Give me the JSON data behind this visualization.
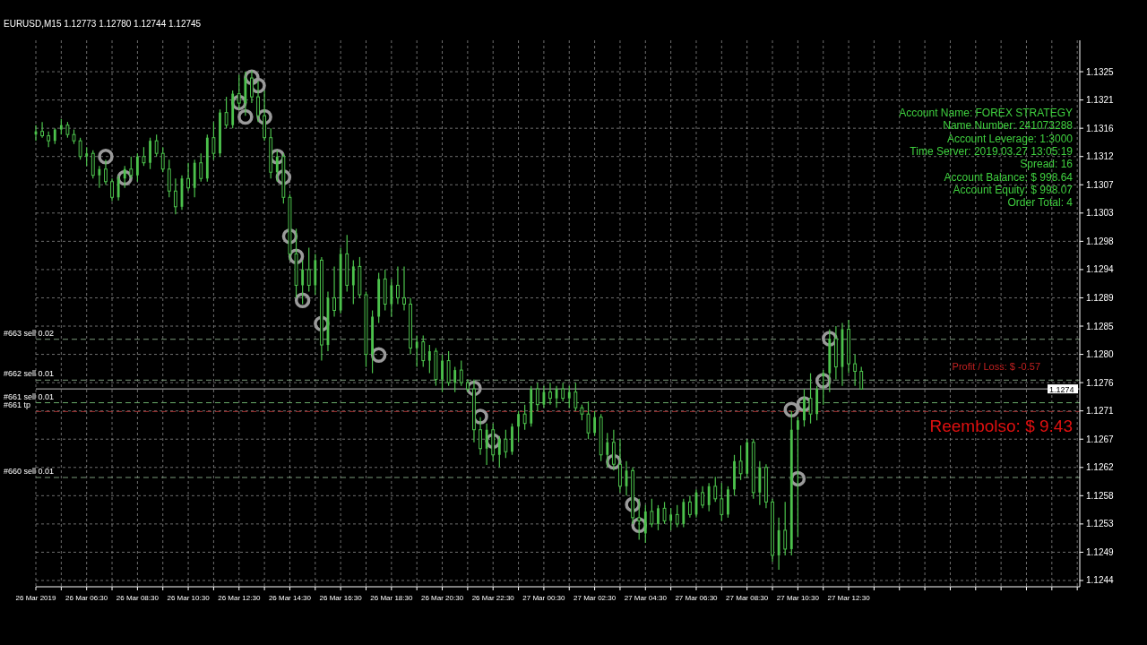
{
  "chart_data": {
    "type": "candlestick",
    "title": "EURUSD,M15  1.12773 1.12780 1.12744 1.12745",
    "color": "#4cc24c",
    "grid": true,
    "marker": "circle",
    "xlim": [
      "2019-03-26T04:30",
      "2019-03-27T21:36"
    ],
    "ylim": [
      1.1243,
      1.133
    ],
    "xticks": [
      {
        "value": "2019-03-26T04:30",
        "label": "26 Mar 2019"
      },
      {
        "value": "2019-03-26T05:30",
        "label": null
      },
      {
        "value": "2019-03-26T06:30",
        "label": "26 Mar 06:30"
      },
      {
        "value": "2019-03-26T07:30",
        "label": null
      },
      {
        "value": "2019-03-26T08:30",
        "label": "26 Mar 08:30"
      },
      {
        "value": "2019-03-26T09:30",
        "label": null
      },
      {
        "value": "2019-03-26T10:30",
        "label": "26 Mar 10:30"
      },
      {
        "value": "2019-03-26T11:30",
        "label": null
      },
      {
        "value": "2019-03-26T12:30",
        "label": "26 Mar 12:30"
      },
      {
        "value": "2019-03-26T13:30",
        "label": null
      },
      {
        "value": "2019-03-26T14:30",
        "label": "26 Mar 14:30"
      },
      {
        "value": "2019-03-26T15:30",
        "label": null
      },
      {
        "value": "2019-03-26T16:30",
        "label": "26 Mar 16:30"
      },
      {
        "value": "2019-03-26T17:30",
        "label": null
      },
      {
        "value": "2019-03-26T18:30",
        "label": "26 Mar 18:30"
      },
      {
        "value": "2019-03-26T19:30",
        "label": null
      },
      {
        "value": "2019-03-26T20:30",
        "label": "26 Mar 20:30"
      },
      {
        "value": "2019-03-26T21:30",
        "label": null
      },
      {
        "value": "2019-03-26T22:30",
        "label": "26 Mar 22:30"
      },
      {
        "value": "2019-03-26T23:30",
        "label": null
      },
      {
        "value": "2019-03-27T00:30",
        "label": "27 Mar 00:30"
      },
      {
        "value": "2019-03-27T01:30",
        "label": null
      },
      {
        "value": "2019-03-27T02:30",
        "label": "27 Mar 02:30"
      },
      {
        "value": "2019-03-27T03:30",
        "label": null
      },
      {
        "value": "2019-03-27T04:30",
        "label": "27 Mar 04:30"
      },
      {
        "value": "2019-03-27T05:30",
        "label": null
      },
      {
        "value": "2019-03-27T06:30",
        "label": "27 Mar 06:30"
      },
      {
        "value": "2019-03-27T07:30",
        "label": null
      },
      {
        "value": "2019-03-27T08:30",
        "label": "27 Mar 08:30"
      },
      {
        "value": "2019-03-27T09:30",
        "label": null
      },
      {
        "value": "2019-03-27T10:30",
        "label": "27 Mar 10:30"
      },
      {
        "value": "2019-03-27T11:30",
        "label": null
      },
      {
        "value": "2019-03-27T12:30",
        "label": "27 Mar 12:30"
      },
      {
        "value": "2019-03-27T13:30",
        "label": null
      },
      {
        "value": "2019-03-27T14:30",
        "label": null
      },
      {
        "value": "2019-03-27T15:30",
        "label": null
      },
      {
        "value": "2019-03-27T16:30",
        "label": null
      },
      {
        "value": "2019-03-27T17:30",
        "label": null
      },
      {
        "value": "2019-03-27T18:30",
        "label": null
      },
      {
        "value": "2019-03-27T19:30",
        "label": null
      },
      {
        "value": "2019-03-27T20:30",
        "label": null
      },
      {
        "value": "2019-03-27T21:30",
        "label": null
      }
    ],
    "yticks": [
      {
        "value": 1.1244,
        "label": "1.1244"
      },
      {
        "value": 1.12485,
        "label": "1.1249"
      },
      {
        "value": 1.1253,
        "label": "1.1253"
      },
      {
        "value": 1.12575,
        "label": "1.1258"
      },
      {
        "value": 1.1262,
        "label": "1.1262"
      },
      {
        "value": 1.12665,
        "label": "1.1267"
      },
      {
        "value": 1.1271,
        "label": "1.1271"
      },
      {
        "value": 1.12755,
        "label": "1.1276"
      },
      {
        "value": 1.128,
        "label": "1.1280"
      },
      {
        "value": 1.12845,
        "label": "1.1285"
      },
      {
        "value": 1.1289,
        "label": "1.1289"
      },
      {
        "value": 1.12935,
        "label": "1.1294"
      },
      {
        "value": 1.1298,
        "label": "1.1298"
      },
      {
        "value": 1.13025,
        "label": "1.1303"
      },
      {
        "value": 1.1307,
        "label": "1.1307"
      },
      {
        "value": 1.13115,
        "label": "1.1312"
      },
      {
        "value": 1.1316,
        "label": "1.1316"
      },
      {
        "value": 1.13205,
        "label": "1.1321"
      },
      {
        "value": 1.1325,
        "label": "1.1325"
      }
    ],
    "x": [
      "2019-03-26T04:30",
      "2019-03-26T04:45",
      "2019-03-26T05:00",
      "2019-03-26T05:15",
      "2019-03-26T05:30",
      "2019-03-26T05:45",
      "2019-03-26T06:00",
      "2019-03-26T06:15",
      "2019-03-26T06:30",
      "2019-03-26T06:45",
      "2019-03-26T07:00",
      "2019-03-26T07:15",
      "2019-03-26T07:30",
      "2019-03-26T07:45",
      "2019-03-26T08:00",
      "2019-03-26T08:15",
      "2019-03-26T08:30",
      "2019-03-26T08:45",
      "2019-03-26T09:00",
      "2019-03-26T09:15",
      "2019-03-26T09:30",
      "2019-03-26T09:45",
      "2019-03-26T10:00",
      "2019-03-26T10:15",
      "2019-03-26T10:30",
      "2019-03-26T10:45",
      "2019-03-26T11:00",
      "2019-03-26T11:15",
      "2019-03-26T11:30",
      "2019-03-26T11:45",
      "2019-03-26T12:00",
      "2019-03-26T12:15",
      "2019-03-26T12:30",
      "2019-03-26T12:45",
      "2019-03-26T13:00",
      "2019-03-26T13:15",
      "2019-03-26T13:30",
      "2019-03-26T13:45",
      "2019-03-26T14:00",
      "2019-03-26T14:15",
      "2019-03-26T14:30",
      "2019-03-26T14:45",
      "2019-03-26T15:00",
      "2019-03-26T15:15",
      "2019-03-26T15:30",
      "2019-03-26T15:45",
      "2019-03-26T16:00",
      "2019-03-26T16:15",
      "2019-03-26T16:30",
      "2019-03-26T16:45",
      "2019-03-26T17:00",
      "2019-03-26T17:15",
      "2019-03-26T17:30",
      "2019-03-26T17:45",
      "2019-03-26T18:00",
      "2019-03-26T18:15",
      "2019-03-26T18:30",
      "2019-03-26T18:45",
      "2019-03-26T19:00",
      "2019-03-26T19:15",
      "2019-03-26T19:30",
      "2019-03-26T19:45",
      "2019-03-26T20:00",
      "2019-03-26T20:15",
      "2019-03-26T20:30",
      "2019-03-26T20:45",
      "2019-03-26T21:00",
      "2019-03-26T21:15",
      "2019-03-26T21:30",
      "2019-03-26T21:45",
      "2019-03-26T22:00",
      "2019-03-26T22:15",
      "2019-03-26T22:30",
      "2019-03-26T22:45",
      "2019-03-26T23:00",
      "2019-03-26T23:15",
      "2019-03-26T23:30",
      "2019-03-26T23:45",
      "2019-03-27T00:00",
      "2019-03-27T00:15",
      "2019-03-27T00:30",
      "2019-03-27T00:45",
      "2019-03-27T01:00",
      "2019-03-27T01:15",
      "2019-03-27T01:30",
      "2019-03-27T01:45",
      "2019-03-27T02:00",
      "2019-03-27T02:15",
      "2019-03-27T02:30",
      "2019-03-27T02:45",
      "2019-03-27T03:00",
      "2019-03-27T03:15",
      "2019-03-27T03:30",
      "2019-03-27T03:45",
      "2019-03-27T04:00",
      "2019-03-27T04:15",
      "2019-03-27T04:30",
      "2019-03-27T04:45",
      "2019-03-27T05:00",
      "2019-03-27T05:15",
      "2019-03-27T05:30",
      "2019-03-27T05:45",
      "2019-03-27T06:00",
      "2019-03-27T06:15",
      "2019-03-27T06:30",
      "2019-03-27T06:45",
      "2019-03-27T07:00",
      "2019-03-27T07:15",
      "2019-03-27T07:30",
      "2019-03-27T07:45",
      "2019-03-27T08:00",
      "2019-03-27T08:15",
      "2019-03-27T08:30",
      "2019-03-27T08:45",
      "2019-03-27T09:00",
      "2019-03-27T09:15",
      "2019-03-27T09:30",
      "2019-03-27T09:45",
      "2019-03-27T10:00",
      "2019-03-27T10:15",
      "2019-03-27T10:30",
      "2019-03-27T10:45",
      "2019-03-27T11:00",
      "2019-03-27T11:15",
      "2019-03-27T11:30",
      "2019-03-27T11:45",
      "2019-03-27T12:00",
      "2019-03-27T12:15",
      "2019-03-27T12:30",
      "2019-03-27T12:45",
      "2019-03-27T13:00"
    ],
    "ohlc": [
      [
        1.1315,
        1.13165,
        1.1314,
        1.13155
      ],
      [
        1.13155,
        1.1317,
        1.13145,
        1.13148
      ],
      [
        1.13148,
        1.13155,
        1.1313,
        1.1314
      ],
      [
        1.1314,
        1.1316,
        1.13135,
        1.13158
      ],
      [
        1.13158,
        1.13175,
        1.1315,
        1.13165
      ],
      [
        1.13165,
        1.1317,
        1.13145,
        1.1315
      ],
      [
        1.1315,
        1.13158,
        1.13135,
        1.1314
      ],
      [
        1.1314,
        1.13145,
        1.1311,
        1.13115
      ],
      [
        1.13115,
        1.1313,
        1.131,
        1.1312
      ],
      [
        1.1312,
        1.13125,
        1.1308,
        1.13085
      ],
      [
        1.13085,
        1.131,
        1.13065,
        1.13095
      ],
      [
        1.13095,
        1.1311,
        1.1307,
        1.13075
      ],
      [
        1.13075,
        1.1308,
        1.13044,
        1.1305
      ],
      [
        1.1305,
        1.13085,
        1.13045,
        1.1308
      ],
      [
        1.1308,
        1.131,
        1.13065,
        1.13095
      ],
      [
        1.13095,
        1.13115,
        1.1308,
        1.13085
      ],
      [
        1.13085,
        1.1312,
        1.13075,
        1.13115
      ],
      [
        1.13115,
        1.1313,
        1.131,
        1.13105
      ],
      [
        1.13105,
        1.13145,
        1.13095,
        1.1314
      ],
      [
        1.1314,
        1.1315,
        1.13115,
        1.1312
      ],
      [
        1.1312,
        1.1313,
        1.1309,
        1.13095
      ],
      [
        1.13095,
        1.1311,
        1.1305,
        1.1306
      ],
      [
        1.1306,
        1.1308,
        1.13023,
        1.13035
      ],
      [
        1.13035,
        1.13085,
        1.1303,
        1.1308
      ],
      [
        1.1308,
        1.13105,
        1.1306,
        1.13065
      ],
      [
        1.13065,
        1.1311,
        1.1305,
        1.13105
      ],
      [
        1.13105,
        1.1312,
        1.13075,
        1.1308
      ],
      [
        1.1308,
        1.1315,
        1.13075,
        1.13145
      ],
      [
        1.13145,
        1.1317,
        1.1311,
        1.1312
      ],
      [
        1.1312,
        1.1319,
        1.13115,
        1.13185
      ],
      [
        1.13185,
        1.1321,
        1.1316,
        1.13165
      ],
      [
        1.13165,
        1.1322,
        1.1316,
        1.13215
      ],
      [
        1.13215,
        1.13245,
        1.1319,
        1.132
      ],
      [
        1.132,
        1.1325,
        1.1318,
        1.1324
      ],
      [
        1.1324,
        1.13252,
        1.132,
        1.1321
      ],
      [
        1.1321,
        1.13235,
        1.1317,
        1.1318
      ],
      [
        1.1318,
        1.1322,
        1.1314,
        1.13145
      ],
      [
        1.13145,
        1.1316,
        1.1308,
        1.1309
      ],
      [
        1.1309,
        1.13125,
        1.13075,
        1.13115
      ],
      [
        1.13115,
        1.1312,
        1.1304,
        1.1305
      ],
      [
        1.1305,
        1.13055,
        1.1295,
        1.1296
      ],
      [
        1.1296,
        1.13,
        1.1289,
        1.1291
      ],
      [
        1.1291,
        1.1295,
        1.1288,
        1.12935
      ],
      [
        1.12935,
        1.1297,
        1.129,
        1.1291
      ],
      [
        1.1291,
        1.1296,
        1.12895,
        1.1295
      ],
      [
        1.1295,
        1.12955,
        1.1279,
        1.12815
      ],
      [
        1.12815,
        1.129,
        1.12805,
        1.1289
      ],
      [
        1.1289,
        1.1294,
        1.1286,
        1.1287
      ],
      [
        1.1287,
        1.1297,
        1.12865,
        1.1296
      ],
      [
        1.1296,
        1.1299,
        1.129,
        1.1291
      ],
      [
        1.1291,
        1.1295,
        1.1288,
        1.1294
      ],
      [
        1.1294,
        1.12955,
        1.1289,
        1.12895
      ],
      [
        1.12895,
        1.129,
        1.1278,
        1.128
      ],
      [
        1.128,
        1.1287,
        1.1277,
        1.1286
      ],
      [
        1.1286,
        1.1293,
        1.1285,
        1.1292
      ],
      [
        1.1292,
        1.12935,
        1.1287,
        1.1288
      ],
      [
        1.1288,
        1.1292,
        1.1286,
        1.1291
      ],
      [
        1.1291,
        1.1294,
        1.1288,
        1.1289
      ],
      [
        1.1289,
        1.1294,
        1.1287,
        1.1288
      ],
      [
        1.1288,
        1.1289,
        1.128,
        1.1281
      ],
      [
        1.1281,
        1.1283,
        1.1278,
        1.1282
      ],
      [
        1.1282,
        1.1283,
        1.1278,
        1.1279
      ],
      [
        1.1279,
        1.12815,
        1.1277,
        1.12805
      ],
      [
        1.12805,
        1.1281,
        1.1275,
        1.1276
      ],
      [
        1.1276,
        1.128,
        1.1274,
        1.1279
      ],
      [
        1.1279,
        1.12805,
        1.1275,
        1.12755
      ],
      [
        1.12755,
        1.1278,
        1.1274,
        1.12775
      ],
      [
        1.12775,
        1.1279,
        1.1275,
        1.12755
      ],
      [
        1.12755,
        1.1276,
        1.1274,
        1.12745
      ],
      [
        1.12745,
        1.1276,
        1.1266,
        1.1268
      ],
      [
        1.1268,
        1.127,
        1.1264,
        1.1265
      ],
      [
        1.1265,
        1.1269,
        1.12624,
        1.1268
      ],
      [
        1.1268,
        1.1269,
        1.1263,
        1.1264
      ],
      [
        1.1264,
        1.1267,
        1.1262,
        1.12665
      ],
      [
        1.12665,
        1.1268,
        1.12635,
        1.12645
      ],
      [
        1.12645,
        1.1269,
        1.1264,
        1.12685
      ],
      [
        1.12685,
        1.1271,
        1.1266,
        1.12705
      ],
      [
        1.12705,
        1.1272,
        1.1268,
        1.1269
      ],
      [
        1.1269,
        1.1275,
        1.12685,
        1.12745
      ],
      [
        1.12745,
        1.12755,
        1.1271,
        1.1272
      ],
      [
        1.1272,
        1.1275,
        1.12715,
        1.1274
      ],
      [
        1.1274,
        1.12755,
        1.1272,
        1.1273
      ],
      [
        1.1273,
        1.1275,
        1.12715,
        1.12745
      ],
      [
        1.12745,
        1.12755,
        1.12725,
        1.1273
      ],
      [
        1.1273,
        1.1275,
        1.12715,
        1.1274
      ],
      [
        1.1274,
        1.12755,
        1.1271,
        1.12715
      ],
      [
        1.12715,
        1.1272,
        1.12695,
        1.12705
      ],
      [
        1.12705,
        1.12725,
        1.12665,
        1.12675
      ],
      [
        1.12675,
        1.1271,
        1.1267,
        1.127
      ],
      [
        1.127,
        1.12705,
        1.1263,
        1.1264
      ],
      [
        1.1264,
        1.12675,
        1.1262,
        1.1266
      ],
      [
        1.1266,
        1.1268,
        1.12615,
        1.12625
      ],
      [
        1.12625,
        1.12665,
        1.1258,
        1.1259
      ],
      [
        1.1259,
        1.1263,
        1.12575,
        1.12615
      ],
      [
        1.12615,
        1.1262,
        1.1253,
        1.1254
      ],
      [
        1.1254,
        1.1257,
        1.12505,
        1.12535
      ],
      [
        1.12515,
        1.1256,
        1.125,
        1.1255
      ],
      [
        1.1255,
        1.1257,
        1.12525,
        1.1253
      ],
      [
        1.1253,
        1.1256,
        1.1252,
        1.12555
      ],
      [
        1.12555,
        1.12565,
        1.1253,
        1.12535
      ],
      [
        1.12535,
        1.12555,
        1.1252,
        1.12545
      ],
      [
        1.12545,
        1.1256,
        1.12525,
        1.1253
      ],
      [
        1.1253,
        1.1257,
        1.12525,
        1.12565
      ],
      [
        1.12565,
        1.12575,
        1.1254,
        1.12545
      ],
      [
        1.12545,
        1.12585,
        1.1254,
        1.1258
      ],
      [
        1.1258,
        1.1259,
        1.12555,
        1.1256
      ],
      [
        1.1256,
        1.12595,
        1.1255,
        1.1259
      ],
      [
        1.1259,
        1.12605,
        1.12565,
        1.1257
      ],
      [
        1.1257,
        1.12595,
        1.12535,
        1.12545
      ],
      [
        1.12545,
        1.1259,
        1.1254,
        1.12585
      ],
      [
        1.12585,
        1.1264,
        1.12575,
        1.1263
      ],
      [
        1.1263,
        1.12655,
        1.126,
        1.1261
      ],
      [
        1.1261,
        1.12665,
        1.12605,
        1.1266
      ],
      [
        1.1266,
        1.12665,
        1.1257,
        1.1258
      ],
      [
        1.1258,
        1.1263,
        1.1256,
        1.1262
      ],
      [
        1.1262,
        1.12625,
        1.12555,
        1.12565
      ],
      [
        1.12565,
        1.1257,
        1.1247,
        1.1248
      ],
      [
        1.1248,
        1.1254,
        1.12457,
        1.1252
      ],
      [
        1.1252,
        1.12565,
        1.1248,
        1.1249
      ],
      [
        1.1249,
        1.1271,
        1.1248,
        1.1268
      ],
      [
        1.1268,
        1.127,
        1.1251,
        1.12695
      ],
      [
        1.12695,
        1.12745,
        1.12685,
        1.1273
      ],
      [
        1.1273,
        1.1277,
        1.1269,
        1.12705
      ],
      [
        1.12705,
        1.1275,
        1.12695,
        1.12745
      ],
      [
        1.12765,
        1.12775,
        1.1272,
        1.1277
      ],
      [
        1.1277,
        1.1284,
        1.1274,
        1.12825
      ],
      [
        1.12825,
        1.12845,
        1.1276,
        1.1278
      ],
      [
        1.1278,
        1.1285,
        1.1275,
        1.1284
      ],
      [
        1.1284,
        1.12855,
        1.1277,
        1.12785
      ],
      [
        1.12785,
        1.128,
        1.1275,
        1.12773
      ],
      [
        1.12773,
        1.1278,
        1.12744,
        1.12745
      ]
    ],
    "series": [
      {
        "type": "scatter",
        "color": "#9a9a9a",
        "x": [
          "2019-03-26T07:15",
          "2019-03-26T08:00",
          "2019-03-26T12:30",
          "2019-03-26T12:45",
          "2019-03-26T13:00",
          "2019-03-26T13:15",
          "2019-03-26T13:30",
          "2019-03-26T14:00",
          "2019-03-26T14:15",
          "2019-03-26T14:30",
          "2019-03-26T14:45",
          "2019-03-26T15:00",
          "2019-03-26T15:45",
          "2019-03-26T18:00",
          "2019-03-26T21:45",
          "2019-03-26T22:00",
          "2019-03-26T22:30",
          "2019-03-27T03:15",
          "2019-03-27T04:00",
          "2019-03-27T04:15",
          "2019-03-27T10:15",
          "2019-03-27T10:30",
          "2019-03-27T10:45",
          "2019-03-27T11:30",
          "2019-03-27T11:45"
        ],
        "values": [
          1.13115,
          1.13081,
          1.13201,
          1.13178,
          1.13241,
          1.13228,
          1.13178,
          1.13115,
          1.13082,
          1.12988,
          1.12956,
          1.12886,
          1.12849,
          1.12799,
          1.12746,
          1.12701,
          1.12662,
          1.12629,
          1.12561,
          1.12528,
          1.12712,
          1.12602,
          1.12721,
          1.12758,
          1.12825
        ]
      }
    ],
    "ref_lines": [
      {
        "axis": "y",
        "value": 1.12824,
        "label": "#663 sell 0.02",
        "color": "#7a9a7a",
        "line_style": "dashed"
      },
      {
        "axis": "y",
        "value": 1.12759,
        "label": "#662 sell 0.01",
        "color": "#7a9a7a",
        "line_style": "dashed"
      },
      {
        "axis": "y",
        "value": 1.12723,
        "label": "#661 sell 0.01",
        "color": "#6aaa6a",
        "line_style": "dashed"
      },
      {
        "axis": "y",
        "value": 1.12709,
        "label": "#661 tp",
        "color": "#a03030",
        "line_style": "dashed"
      },
      {
        "axis": "y",
        "value": 1.12604,
        "label": "#660 sell 0.01",
        "color": "#7a9a7a",
        "line_style": "dashed"
      },
      {
        "axis": "y",
        "value": 1.12745,
        "label": "1.1274",
        "color": "#c0c0c0",
        "line_style": "solid"
      }
    ],
    "annotations": [
      "Account Name: FOREX STRATEGY",
      "Name Number: 241073288",
      "Account Leverage: 1:3000",
      "Time Server: 2019.03.27 13:05:19",
      "Spread: 16",
      "Account Balance: $ 998.64",
      "Account Equity: $ 998.07",
      "Order Total: 4",
      "Profit / Loss: $ -0.57",
      "Reembolso: $ 9.43"
    ]
  }
}
